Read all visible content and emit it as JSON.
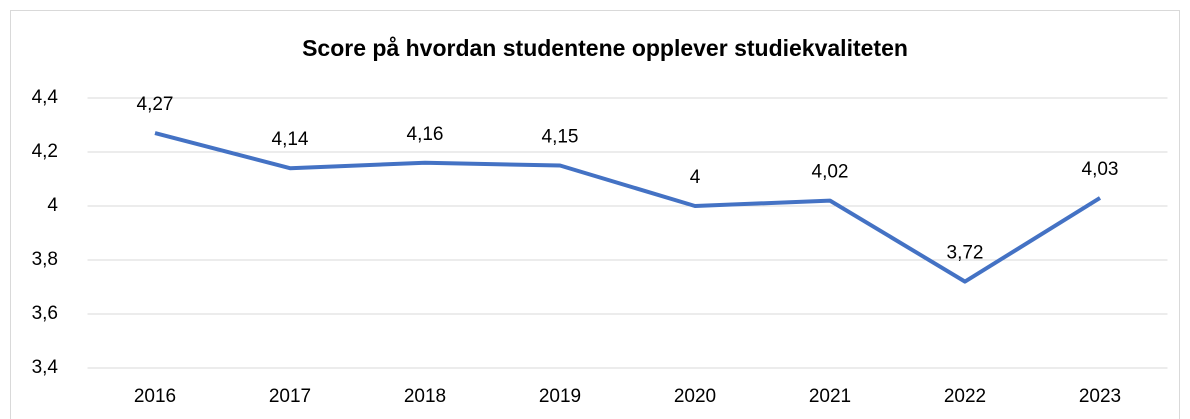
{
  "chart_data": {
    "type": "line",
    "title": "Score på hvordan studentene opplever studiekvaliteten",
    "categories": [
      "2016",
      "2017",
      "2018",
      "2019",
      "2020",
      "2021",
      "2022",
      "2023"
    ],
    "series": [
      {
        "name": "Score",
        "color": "#4472c4",
        "values": [
          4.27,
          4.14,
          4.16,
          4.15,
          4,
          4.02,
          3.72,
          4.03
        ],
        "value_labels": [
          "4,27",
          "4,14",
          "4,16",
          "4,15",
          "4",
          "4,02",
          "3,72",
          "4,03"
        ]
      }
    ],
    "ylim": [
      3.4,
      4.4
    ],
    "yticks": [
      {
        "value": 3.4,
        "label": "3,4"
      },
      {
        "value": 3.6,
        "label": "3,6"
      },
      {
        "value": 3.8,
        "label": "3,8"
      },
      4,
      {
        "value": 4.2,
        "label": "4,2"
      },
      {
        "value": 4.4,
        "label": "4,4"
      }
    ],
    "grid": true
  }
}
